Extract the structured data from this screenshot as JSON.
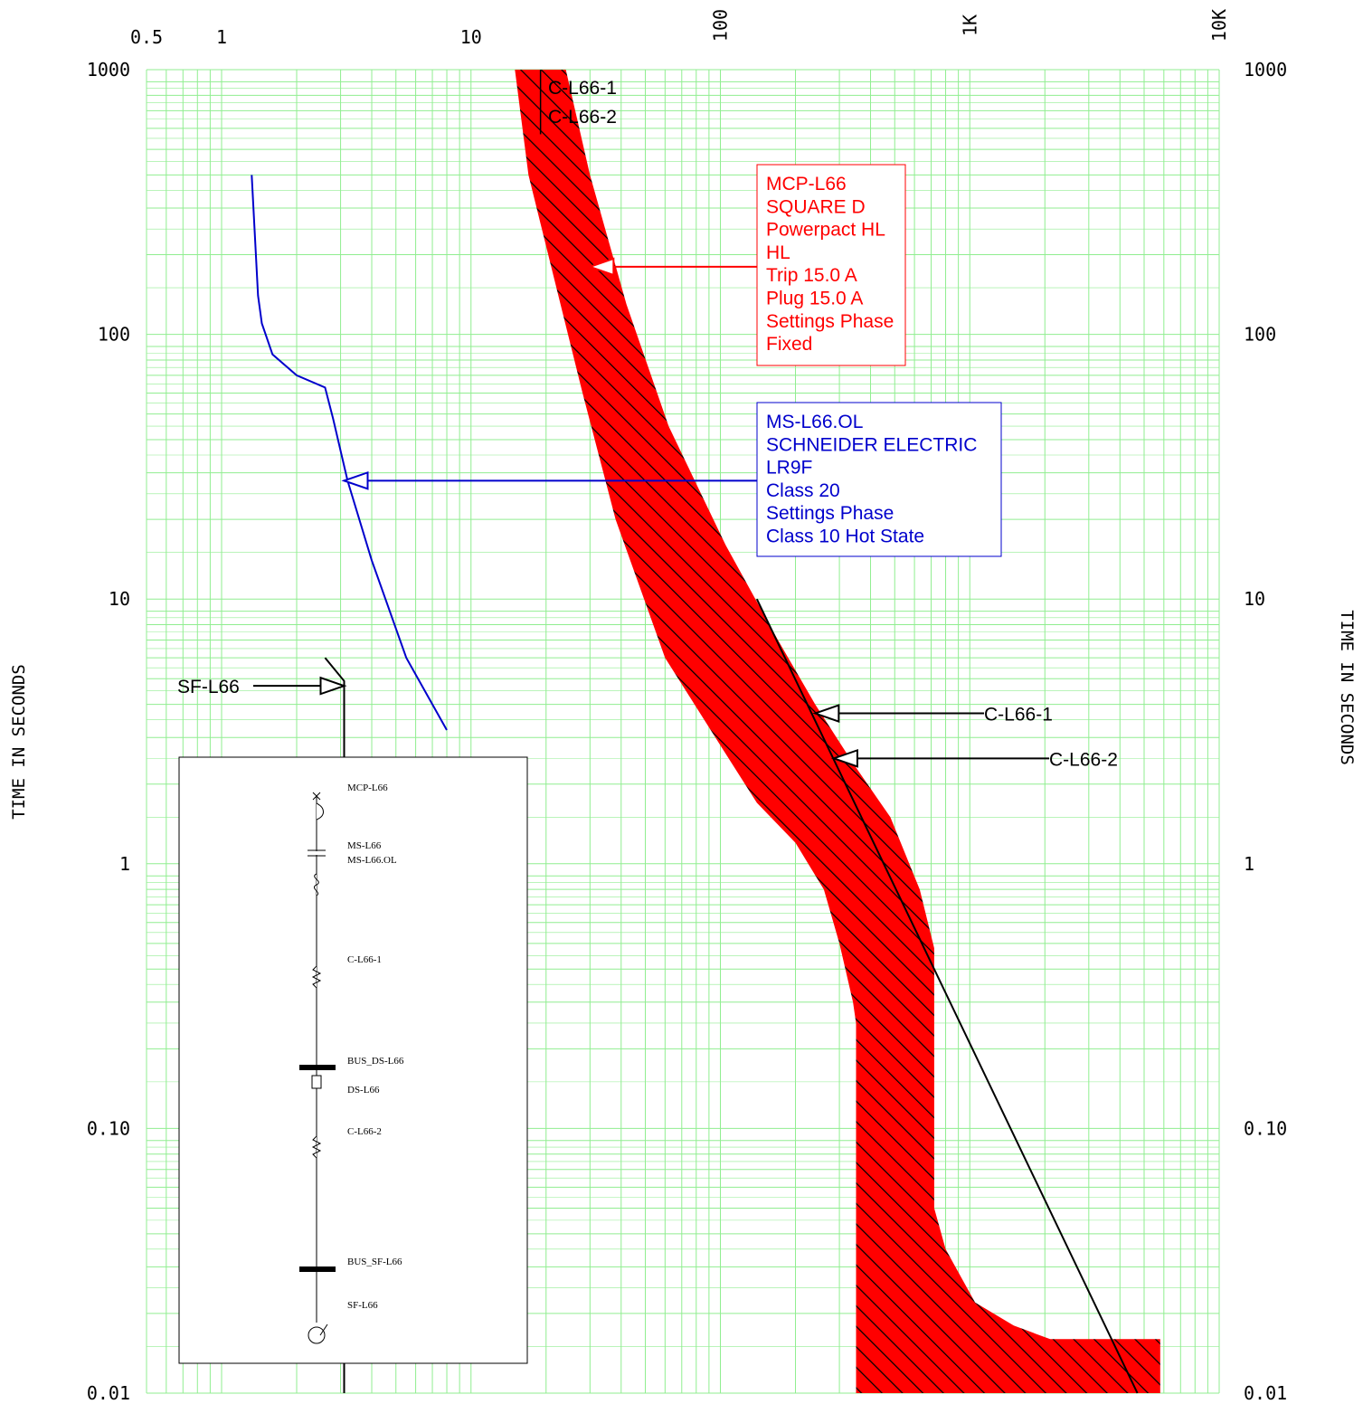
{
  "chart_data": {
    "type": "line",
    "xscale": "log",
    "yscale": "log",
    "xlim": [
      0.5,
      10000
    ],
    "ylim": [
      0.01,
      1000
    ],
    "grid": true,
    "ylabel": "TIME IN SECONDS",
    "y2label": "TIME IN SECONDS",
    "x_tick_labels": [
      {
        "value": 0.5,
        "label": "0.5"
      },
      {
        "value": 1,
        "label": "1"
      },
      {
        "value": 10,
        "label": "10"
      },
      {
        "value": 100,
        "label": "100"
      },
      {
        "value": 1000,
        "label": "1K"
      },
      {
        "value": 10000,
        "label": "10K"
      }
    ],
    "y_tick_labels": [
      {
        "value": 1000,
        "label": "1000"
      },
      {
        "value": 100,
        "label": "100"
      },
      {
        "value": 10,
        "label": "10"
      },
      {
        "value": 1,
        "label": "1"
      },
      {
        "value": 0.1,
        "label": "0.10"
      },
      {
        "value": 0.01,
        "label": "0.01"
      }
    ],
    "colors": {
      "grid": "#90ee90",
      "breaker_band": "#ff0000",
      "overload": "#0000cc",
      "cable": "#000000"
    },
    "breaker_band": {
      "name": "MCP-L66",
      "left_edge": [
        [
          15,
          1000
        ],
        [
          17,
          400
        ],
        [
          22,
          150
        ],
        [
          28,
          60
        ],
        [
          38,
          20
        ],
        [
          60,
          6
        ],
        [
          100,
          2.8
        ],
        [
          140,
          1.7
        ],
        [
          200,
          1.2
        ],
        [
          260,
          0.8
        ],
        [
          300,
          0.5
        ],
        [
          340,
          0.3
        ],
        [
          350,
          0.25
        ],
        [
          350,
          0.01
        ]
      ],
      "right_edge": [
        [
          5800,
          0.01
        ],
        [
          5800,
          0.016
        ],
        [
          2100,
          0.016
        ],
        [
          1500,
          0.018
        ],
        [
          1050,
          0.022
        ],
        [
          800,
          0.035
        ],
        [
          720,
          0.05
        ],
        [
          720,
          0.48
        ],
        [
          630,
          0.8
        ],
        [
          480,
          1.5
        ],
        [
          340,
          2.4
        ],
        [
          240,
          4
        ],
        [
          170,
          7
        ],
        [
          105,
          16
        ],
        [
          62,
          45
        ],
        [
          42,
          130
        ],
        [
          30,
          400
        ],
        [
          24,
          1000
        ]
      ]
    },
    "overload_curve": {
      "name": "MS-L66.OL",
      "points": [
        [
          1.32,
          400
        ],
        [
          1.4,
          140
        ],
        [
          1.45,
          110
        ],
        [
          1.6,
          84
        ],
        [
          2,
          70
        ],
        [
          2.6,
          63
        ],
        [
          2.8,
          48
        ],
        [
          3.2,
          28
        ],
        [
          4,
          14
        ],
        [
          5.5,
          6
        ],
        [
          8,
          3.2
        ]
      ]
    },
    "cable_curve": {
      "points": [
        [
          140,
          10
        ],
        [
          4700,
          0.01
        ]
      ]
    },
    "fuse_curve": {
      "name": "SF-L66",
      "points": [
        [
          2.6,
          6
        ],
        [
          3.1,
          4.9
        ],
        [
          3.1,
          0.01
        ]
      ]
    },
    "cable_damage_marks": [
      {
        "points": [
          [
            19,
            1000
          ],
          [
            19,
            570
          ]
        ]
      }
    ],
    "annotations": {
      "breaker": {
        "color": "#ff0000",
        "arrow_x": 30,
        "arrow_y": 180,
        "lines": [
          "MCP-L66",
          "SQUARE D",
          "Powerpact HL",
          "HL",
          "Trip 15.0 A",
          "Plug 15.0 A",
          "Settings Phase",
          "   Fixed"
        ]
      },
      "overload": {
        "color": "#0000cc",
        "arrow_x": 3.1,
        "arrow_y": 28,
        "lines": [
          "MS-L66.OL",
          "SCHNEIDER ELECTRIC",
          "LR9F",
          "Class 20",
          "Settings Phase",
          "  Class 10 Hot State"
        ]
      },
      "cable_1": {
        "label": "C-L66-1",
        "arrow_x": 240,
        "arrow_y": 3.7
      },
      "cable_2": {
        "label": "C-L66-2",
        "arrow_x": 285,
        "arrow_y": 2.5
      },
      "top_1": {
        "label": "C-L66-1"
      },
      "top_2": {
        "label": "C-L66-2"
      },
      "fuse": {
        "label": "SF-L66",
        "arrow_x": 3.1,
        "arrow_y": 4.7
      }
    },
    "one_line": {
      "labels": [
        "MCP-L66",
        "MS-L66",
        "MS-L66.OL",
        "C-L66-1",
        "BUS_DS-L66",
        "DS-L66",
        "C-L66-2",
        "BUS_SF-L66",
        "SF-L66"
      ]
    }
  }
}
